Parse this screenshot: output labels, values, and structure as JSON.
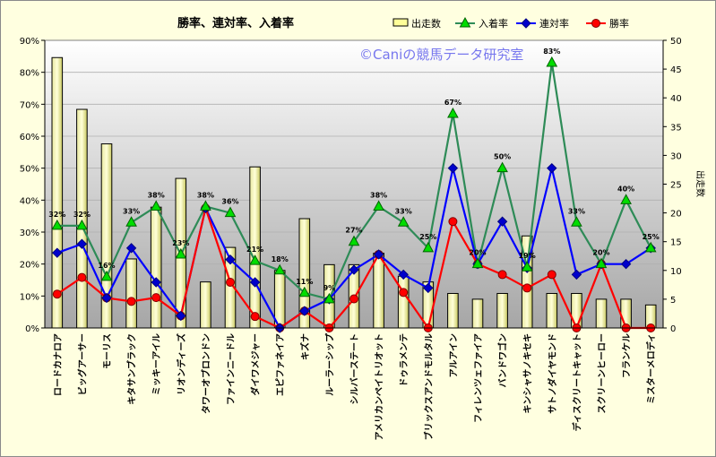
{
  "chart_data": {
    "type": "bar+line",
    "title": "勝率、連対率、入着率",
    "watermark": "©Caniの競馬データ研究室",
    "categories": [
      "ロードカナロア",
      "ビッグアーサー",
      "モーリス",
      "キタサンブラック",
      "ミッキーアイル",
      "リオンディーズ",
      "タワーオブロンドン",
      "ファインニードル",
      "ダイワメジャー",
      "エピファネイア",
      "キズナ",
      "ルーラーシップ",
      "シルバーステート",
      "アメリカンペイトリオット",
      "ドゥラメンテ",
      "ブリックスアンドモルタル",
      "アルアイン",
      "フィレンツェファイア",
      "バンドワゴン",
      "キンシャサノキセキ",
      "サトノダイヤモンド",
      "ディスクリートキャット",
      "スクリーンヒーロー",
      "フランケル",
      "ミスターメロディ"
    ],
    "y_left": {
      "min": 0,
      "max": 90,
      "step": 10,
      "format": "%"
    },
    "y_right": {
      "min": 0,
      "max": 50,
      "step": 5,
      "label": "出走数"
    },
    "bars": {
      "name": "出走数",
      "values": [
        47,
        38,
        32,
        12,
        21,
        26,
        8,
        14,
        28,
        10,
        19,
        11,
        11,
        13,
        9,
        8,
        6,
        5,
        6,
        16,
        6,
        6,
        5,
        5,
        4
      ]
    },
    "series": [
      {
        "name": "入着率",
        "color": "#2e8b57",
        "marker": "triangle",
        "marker_color": "#00dd00",
        "values": [
          32,
          32,
          16,
          33,
          38,
          23,
          38,
          36,
          21,
          18,
          11,
          9,
          27,
          38,
          33,
          25,
          67,
          20,
          50,
          19,
          83,
          33,
          20,
          40,
          25
        ],
        "labels": [
          "32%",
          "32%",
          "16%",
          "33%",
          "38%",
          "23%",
          "38%",
          "36%",
          "21%",
          "18%",
          "11%",
          "9%",
          "27%",
          "38%",
          "33%",
          "25%",
          "67%",
          "20%",
          "50%",
          "19%",
          "83%",
          "33%",
          "20%",
          "40%",
          "25%"
        ]
      },
      {
        "name": "連対率",
        "color": "#0000ff",
        "marker": "diamond",
        "marker_color": "#0000cc",
        "values": [
          23.5,
          26.3,
          9.4,
          25,
          14.3,
          3.8,
          37.5,
          21.4,
          14.3,
          0,
          5.3,
          9,
          18.2,
          23,
          16.7,
          12.5,
          50,
          20,
          33.3,
          18.75,
          50,
          16.7,
          20,
          20,
          25
        ]
      },
      {
        "name": "勝率",
        "color": "#ff0000",
        "marker": "circle",
        "marker_color": "#ff0000",
        "values": [
          10.6,
          15.8,
          9.4,
          8.3,
          9.5,
          3.8,
          37.5,
          14.3,
          3.6,
          0,
          5.3,
          0,
          9.1,
          23,
          11.1,
          0,
          33.3,
          20,
          16.7,
          12.5,
          16.7,
          0,
          20,
          0,
          0
        ]
      }
    ],
    "legend_position": "top-right"
  }
}
